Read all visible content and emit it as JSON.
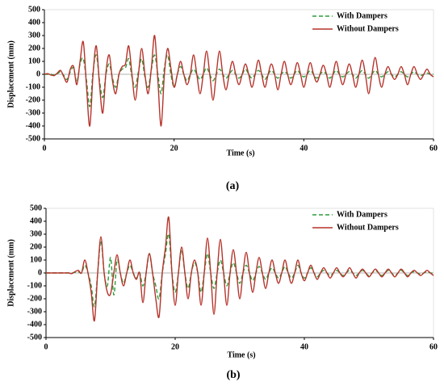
{
  "chart_data": [
    {
      "type": "line",
      "caption": "(a)",
      "x_label": "Time (s)",
      "y_label": "Displacement  (mm)",
      "xlim": [
        0,
        60
      ],
      "xticks": [
        0,
        20,
        40,
        60
      ],
      "ylim": [
        -500,
        500
      ],
      "yticks": [
        -500,
        -400,
        -300,
        -200,
        -100,
        0,
        100,
        200,
        300,
        400,
        500
      ],
      "legend": "top-right",
      "x": [
        0,
        0.5,
        1,
        1.5,
        2,
        2.5,
        3,
        3.5,
        4,
        4.5,
        5,
        5.5,
        6,
        6.5,
        7,
        7.5,
        8,
        8.5,
        9,
        9.5,
        10,
        10.5,
        11,
        11.5,
        12,
        12.5,
        13,
        13.5,
        14,
        14.5,
        15,
        15.5,
        16,
        16.5,
        17,
        17.5,
        18,
        18.5,
        19,
        19.5,
        20,
        20.5,
        21,
        21.5,
        22,
        22.5,
        23,
        23.5,
        24,
        24.5,
        25,
        25.5,
        26,
        26.5,
        27,
        27.5,
        28,
        28.5,
        29,
        29.5,
        30,
        30.5,
        31,
        31.5,
        32,
        32.5,
        33,
        33.5,
        34,
        34.5,
        35,
        35.5,
        36,
        36.5,
        37,
        37.5,
        38,
        38.5,
        39,
        39.5,
        40,
        40.5,
        41,
        41.5,
        42,
        42.5,
        43,
        43.5,
        44,
        44.5,
        45,
        45.5,
        46,
        46.5,
        47,
        47.5,
        48,
        48.5,
        49,
        49.5,
        50,
        50.5,
        51,
        51.5,
        52,
        52.5,
        53,
        53.5,
        54,
        54.5,
        55,
        55.5,
        56,
        56.5,
        57,
        57.5,
        58,
        58.5,
        59,
        59.5,
        60
      ],
      "series": [
        {
          "name": "With Dampers",
          "color": "#2e9b3a",
          "dash": true,
          "values": [
            0,
            0,
            0,
            -5,
            5,
            20,
            -10,
            -40,
            20,
            50,
            -60,
            80,
            120,
            -50,
            -250,
            20,
            150,
            -50,
            -180,
            0,
            80,
            -30,
            -100,
            0,
            40,
            50,
            120,
            -20,
            -100,
            20,
            120,
            -20,
            -100,
            40,
            150,
            0,
            -150,
            50,
            150,
            0,
            -100,
            0,
            60,
            0,
            -50,
            0,
            40,
            0,
            -40,
            0,
            50,
            0,
            -50,
            0,
            40,
            0,
            -30,
            0,
            30,
            0,
            -30,
            0,
            40,
            0,
            -30,
            0,
            30,
            0,
            -40,
            0,
            30,
            0,
            -30,
            0,
            20,
            0,
            -30,
            0,
            30,
            0,
            -20,
            0,
            30,
            0,
            -30,
            0,
            20,
            0,
            -30,
            0,
            30,
            0,
            -20,
            0,
            20,
            0,
            -30,
            0,
            30,
            0,
            -30,
            0,
            30,
            0,
            -20,
            0,
            20,
            0,
            -20,
            0,
            20,
            0,
            -20,
            0,
            20,
            0,
            -10,
            0,
            10,
            0,
            0
          ]
        },
        {
          "name": "Without Dampers",
          "color": "#b5332a",
          "dash": false,
          "values": [
            0,
            5,
            -5,
            -10,
            10,
            30,
            -20,
            -60,
            40,
            60,
            -80,
            100,
            250,
            -100,
            -400,
            0,
            220,
            -80,
            -300,
            20,
            150,
            -50,
            -150,
            0,
            60,
            80,
            220,
            0,
            -200,
            0,
            200,
            0,
            -150,
            50,
            300,
            -50,
            -400,
            0,
            200,
            50,
            -100,
            0,
            100,
            0,
            -80,
            0,
            150,
            0,
            -150,
            0,
            180,
            0,
            -200,
            0,
            180,
            0,
            -120,
            0,
            100,
            0,
            -80,
            0,
            80,
            0,
            -100,
            0,
            110,
            0,
            -100,
            0,
            80,
            0,
            -120,
            0,
            100,
            0,
            -80,
            0,
            90,
            0,
            -100,
            0,
            90,
            0,
            -60,
            0,
            70,
            0,
            -100,
            0,
            100,
            0,
            -80,
            0,
            80,
            0,
            -100,
            0,
            110,
            0,
            -150,
            0,
            130,
            0,
            -100,
            0,
            60,
            0,
            -40,
            0,
            60,
            0,
            -80,
            0,
            60,
            0,
            -40,
            0,
            40,
            0,
            -20
          ]
        }
      ]
    },
    {
      "type": "line",
      "caption": "(b)",
      "x_label": "Time (s)",
      "y_label": "Displacement (mm)",
      "xlim": [
        0,
        60
      ],
      "xticks": [
        0,
        20,
        40,
        60
      ],
      "ylim": [
        -500,
        500
      ],
      "yticks": [
        -500,
        -400,
        -300,
        -200,
        -100,
        0,
        100,
        200,
        300,
        400,
        500
      ],
      "legend": "top-right",
      "x": [
        0,
        0.5,
        1,
        1.5,
        2,
        2.5,
        3,
        3.5,
        4,
        4.5,
        5,
        5.5,
        6,
        6.5,
        7,
        7.5,
        8,
        8.5,
        9,
        9.5,
        10,
        10.5,
        11,
        11.5,
        12,
        12.5,
        13,
        13.5,
        14,
        14.5,
        15,
        15.5,
        16,
        16.5,
        17,
        17.5,
        18,
        18.5,
        19,
        19.5,
        20,
        20.5,
        21,
        21.5,
        22,
        22.5,
        23,
        23.5,
        24,
        24.5,
        25,
        25.5,
        26,
        26.5,
        27,
        27.5,
        28,
        28.5,
        29,
        29.5,
        30,
        30.5,
        31,
        31.5,
        32,
        32.5,
        33,
        33.5,
        34,
        34.5,
        35,
        35.5,
        36,
        36.5,
        37,
        37.5,
        38,
        38.5,
        39,
        39.5,
        40,
        40.5,
        41,
        41.5,
        42,
        42.5,
        43,
        43.5,
        44,
        44.5,
        45,
        45.5,
        46,
        46.5,
        47,
        47.5,
        48,
        48.5,
        49,
        49.5,
        50,
        50.5,
        51,
        51.5,
        52,
        52.5,
        53,
        53.5,
        54,
        54.5,
        55,
        55.5,
        56,
        56.5,
        57,
        57.5,
        58,
        58.5,
        59,
        59.5,
        60
      ],
      "series": [
        {
          "name": "With Dampers",
          "color": "#2e9b3a",
          "dash": true,
          "values": [
            0,
            0,
            0,
            0,
            0,
            0,
            0,
            0,
            0,
            5,
            10,
            0,
            60,
            0,
            -100,
            -260,
            0,
            250,
            0,
            -100,
            120,
            -170,
            100,
            0,
            -80,
            0,
            60,
            0,
            -40,
            0,
            -100,
            0,
            150,
            0,
            -100,
            -200,
            0,
            150,
            300,
            0,
            -150,
            0,
            180,
            0,
            -120,
            0,
            80,
            0,
            -150,
            0,
            150,
            0,
            -120,
            0,
            100,
            0,
            -100,
            0,
            80,
            0,
            -80,
            0,
            60,
            0,
            -60,
            0,
            50,
            0,
            -50,
            0,
            40,
            0,
            -40,
            0,
            50,
            0,
            -40,
            0,
            60,
            0,
            -40,
            0,
            40,
            0,
            -30,
            0,
            20,
            0,
            -20,
            0,
            20,
            0,
            -20,
            0,
            20,
            0,
            -20,
            0,
            20,
            0,
            -20,
            0,
            20,
            0,
            -20,
            0,
            20,
            0,
            -20,
            0,
            20,
            0,
            -20,
            0,
            10,
            0,
            -10,
            0,
            10,
            0,
            0
          ]
        },
        {
          "name": "Without Dampers",
          "color": "#b5332a",
          "dash": false,
          "values": [
            0,
            0,
            0,
            0,
            0,
            0,
            0,
            0,
            -5,
            10,
            20,
            0,
            100,
            0,
            -150,
            -370,
            0,
            280,
            0,
            -150,
            -160,
            0,
            140,
            0,
            -100,
            0,
            100,
            0,
            -50,
            0,
            -230,
            0,
            150,
            0,
            -200,
            -340,
            0,
            200,
            430,
            0,
            -250,
            0,
            200,
            0,
            -200,
            0,
            100,
            0,
            -250,
            0,
            270,
            0,
            -320,
            0,
            260,
            0,
            -250,
            0,
            180,
            0,
            -200,
            0,
            160,
            0,
            -150,
            0,
            120,
            0,
            -120,
            0,
            100,
            0,
            -80,
            0,
            100,
            0,
            -80,
            0,
            100,
            0,
            -60,
            0,
            60,
            0,
            -50,
            0,
            40,
            0,
            -40,
            0,
            40,
            0,
            -30,
            0,
            40,
            0,
            -40,
            0,
            30,
            0,
            -30,
            0,
            30,
            0,
            -30,
            0,
            30,
            0,
            -30,
            0,
            30,
            0,
            -30,
            0,
            20,
            0,
            -20,
            0,
            20,
            0,
            -20
          ]
        }
      ]
    }
  ]
}
